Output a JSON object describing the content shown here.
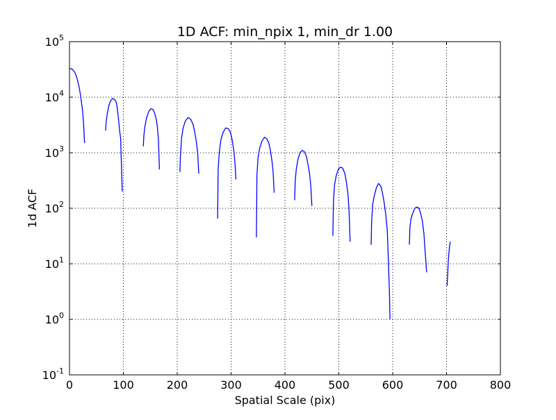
{
  "chart_data": {
    "type": "line",
    "title": "1D ACF: min_npix 1, min_dr 1.00",
    "xlabel": "Spatial Scale (pix)",
    "ylabel": "1d ACF",
    "xlim": [
      0,
      800
    ],
    "ylim": [
      0.1,
      100000
    ],
    "yscale": "log",
    "grid": true,
    "line_color": "#0000ff",
    "x_ticks": [
      "0",
      "100",
      "200",
      "300",
      "400",
      "500",
      "600",
      "700",
      "800"
    ],
    "y_ticks": [
      {
        "base": "10",
        "exp": "-1"
      },
      {
        "base": "10",
        "exp": "0"
      },
      {
        "base": "10",
        "exp": "1"
      },
      {
        "base": "10",
        "exp": "2"
      },
      {
        "base": "10",
        "exp": "3"
      },
      {
        "base": "10",
        "exp": "4"
      },
      {
        "base": "10",
        "exp": "5"
      }
    ],
    "series": [
      {
        "segments": [
          {
            "x": [
              0,
              5,
              10,
              14,
              18,
              21,
              24,
              26,
              28
            ],
            "y": [
              33000,
              32000,
              28000,
              22000,
              15000,
              10000,
              6000,
              3500,
              1500
            ]
          },
          {
            "x": [
              67,
              68,
              70,
              73,
              76,
              80,
              84,
              87,
              89,
              91,
              93,
              95,
              96,
              97,
              98
            ],
            "y": [
              2500,
              3500,
              5000,
              7000,
              8500,
              9500,
              9000,
              8000,
              6000,
              4000,
              2500,
              1800,
              800,
              400,
              200
            ]
          },
          {
            "x": [
              137,
              138,
              140,
              143,
              147,
              151,
              155,
              158,
              161,
              163,
              165,
              167
            ],
            "y": [
              1300,
              2000,
              3000,
              4200,
              5500,
              6200,
              6000,
              5200,
              4000,
              3000,
              1800,
              500
            ]
          },
          {
            "x": [
              205,
              206,
              208,
              211,
              215,
              220,
              225,
              229,
              232,
              235,
              238,
              240
            ],
            "y": [
              450,
              900,
              1800,
              2800,
              3700,
              4300,
              4000,
              3300,
              2500,
              1700,
              1000,
              420
            ]
          },
          {
            "x": [
              275,
              276,
              278,
              281,
              285,
              290,
              295,
              299,
              302,
              305,
              307,
              309
            ],
            "y": [
              65,
              500,
              1000,
              1700,
              2300,
              2800,
              2700,
              2300,
              1700,
              1100,
              700,
              330
            ]
          },
          {
            "x": [
              347,
              348,
              350,
              353,
              357,
              362,
              366,
              370,
              373,
              376,
              378,
              380
            ],
            "y": [
              30,
              400,
              800,
              1200,
              1600,
              1900,
              1800,
              1500,
              1100,
              700,
              450,
              190
            ]
          },
          {
            "x": [
              418,
              419,
              421,
              424,
              428,
              432,
              436,
              440,
              443,
              446,
              448,
              450
            ],
            "y": [
              140,
              300,
              500,
              750,
              1000,
              1100,
              1050,
              850,
              600,
              400,
              250,
              110
            ]
          },
          {
            "x": [
              489,
              490,
              492,
              495,
              499,
              503,
              507,
              511,
              514,
              517,
              519,
              521
            ],
            "y": [
              32,
              130,
              260,
              380,
              500,
              550,
              530,
              430,
              300,
              180,
              90,
              25
            ]
          },
          {
            "x": [
              560,
              561,
              563,
              566,
              570,
              574,
              578,
              581,
              584,
              587,
              590,
              592,
              594,
              595
            ],
            "y": [
              22,
              60,
              120,
              170,
              240,
              280,
              250,
              190,
              130,
              80,
              40,
              12,
              3,
              1
            ]
          },
          {
            "x": [
              631,
              632,
              634,
              637,
              641,
              645,
              649,
              652,
              655,
              658,
              660,
              662,
              663
            ],
            "y": [
              22,
              45,
              65,
              80,
              100,
              105,
              100,
              80,
              60,
              35,
              18,
              10,
              7
            ]
          },
          {
            "x": [
              701,
              702,
              703,
              704,
              705,
              706,
              707
            ],
            "y": [
              4,
              6,
              10,
              14,
              18,
              22,
              25
            ]
          }
        ]
      }
    ]
  }
}
